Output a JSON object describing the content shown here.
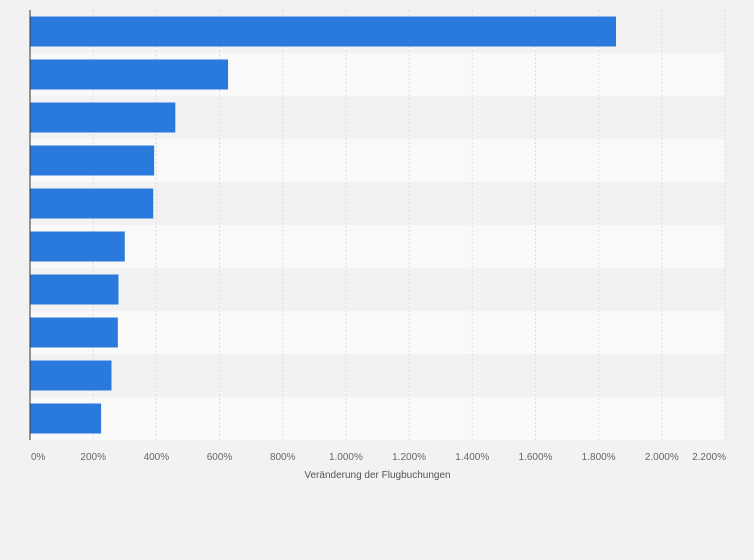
{
  "chart_data": {
    "type": "bar",
    "orientation": "horizontal",
    "title": "",
    "xlabel": "Veränderung der Flugbuchungen",
    "ylabel": "",
    "x_tick_labels": [
      "0%",
      "200%",
      "400%",
      "600%",
      "800%",
      "1.000%",
      "1.200%",
      "1.400%",
      "1.600%",
      "1.800%",
      "2.000%",
      "2.200%"
    ],
    "xlim": [
      0,
      2200
    ],
    "grid": true,
    "categories": [
      "",
      "",
      "",
      "",
      "",
      "",
      "",
      "",
      "",
      ""
    ],
    "values": [
      1855,
      627,
      460,
      393,
      390,
      300,
      280,
      278,
      258,
      225
    ],
    "colors": {
      "bar": "#2a79dc",
      "band_dark": "#f2f2f2",
      "band_light": "#f9f9f9",
      "grid": "#dedede",
      "axis": "#333333"
    }
  }
}
